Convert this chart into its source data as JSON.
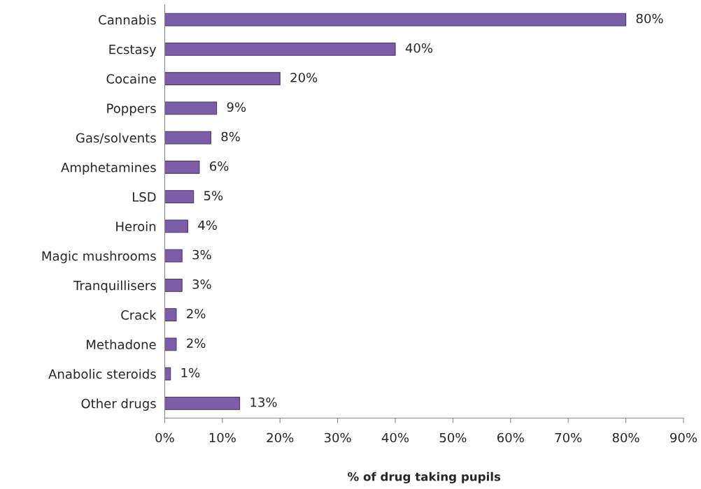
{
  "chart_data": {
    "type": "bar",
    "orientation": "horizontal",
    "xlabel": "% of drug taking pupils",
    "categories": [
      "Cannabis",
      "Ecstasy",
      "Cocaine",
      "Poppers",
      "Gas/solvents",
      "Amphetamines",
      "LSD",
      "Heroin",
      "Magic mushrooms",
      "Tranquillisers",
      "Crack",
      "Methadone",
      "Anabolic steroids",
      "Other drugs"
    ],
    "values": [
      80,
      40,
      20,
      9,
      8,
      6,
      5,
      4,
      3,
      3,
      2,
      2,
      1,
      13
    ],
    "value_labels": [
      "80%",
      "40%",
      "20%",
      "9%",
      "8%",
      "6%",
      "5%",
      "4%",
      "3%",
      "3%",
      "2%",
      "2%",
      "1%",
      "13%"
    ],
    "color": "#7b5ea7",
    "xlim": [
      0,
      90
    ],
    "xticks": [
      {
        "value": 0,
        "label": "0%"
      },
      {
        "value": 10,
        "label": "10%"
      },
      {
        "value": 20,
        "label": "20%"
      },
      {
        "value": 30,
        "label": "30%"
      },
      {
        "value": 40,
        "label": "40%"
      },
      {
        "value": 50,
        "label": "50%"
      },
      {
        "value": 60,
        "label": "60%"
      },
      {
        "value": 70,
        "label": "70%"
      },
      {
        "value": 80,
        "label": "80%"
      },
      {
        "value": 90,
        "label": "90%"
      }
    ],
    "grid": false,
    "legend": false
  }
}
